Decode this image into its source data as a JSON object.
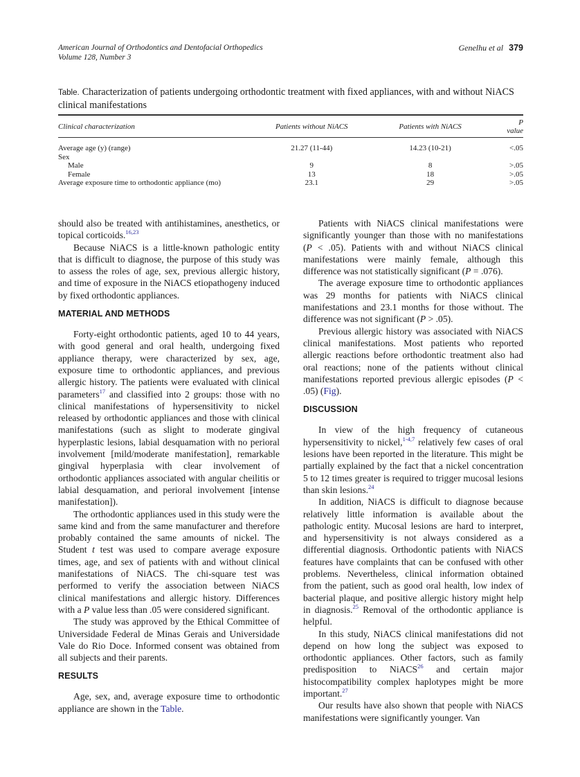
{
  "running_header": {
    "journal": "American Journal of Orthodontics and Dentofacial Orthopedics",
    "volume": "Volume 128, Number 3",
    "authors": "Genelhu et al",
    "page_number": "379"
  },
  "table": {
    "label": "Table.",
    "caption": "Characterization of patients undergoing orthodontic treatment with fixed appliances, with and without NiACS clinical manifestations",
    "headers": [
      "Clinical characterization",
      "Patients without NiACS",
      "Patients with NiACS",
      "P value"
    ],
    "rows": [
      {
        "label": "Average age (y) (range)",
        "without": "21.27 (11-44)",
        "with": "14.23 (10-21)",
        "p": "<.05"
      },
      {
        "label": "Sex",
        "without": "",
        "with": "",
        "p": ""
      },
      {
        "label": "Male",
        "without": "9",
        "with": "8",
        "p": ">.05"
      },
      {
        "label": "Female",
        "without": "13",
        "with": "18",
        "p": ">.05"
      },
      {
        "label": "Average exposure time to orthodontic appliance (mo)",
        "without": "23.1",
        "with": "29",
        "p": ">.05"
      }
    ]
  },
  "body": {
    "left": [
      {
        "type": "p",
        "indent": false,
        "segments": [
          {
            "t": "should also be treated with antihistamines, anesthetics, or topical corticoids."
          },
          {
            "sup": "16,23"
          }
        ]
      },
      {
        "type": "p",
        "segments": [
          {
            "t": "Because NiACS is a little-known pathologic entity that is difficult to diagnose, the purpose of this study was to assess the roles of age, sex, previous allergic history, and time of exposure in the NiACS etiopathogeny induced by fixed orthodontic appliances."
          }
        ]
      },
      {
        "type": "h",
        "text": "MATERIAL AND METHODS"
      },
      {
        "type": "p",
        "segments": [
          {
            "t": "Forty-eight orthodontic patients, aged 10 to 44 years, with good general and oral health, undergoing fixed appliance therapy, were characterized by sex, age, exposure time to orthodontic appliances, and previous allergic history. The patients were evaluated with clinical parameters"
          },
          {
            "sup": "17"
          },
          {
            "t": " and classified into 2 groups: those with no clinical manifestations of hypersensitivity to nickel released by orthodontic appliances and those with clinical manifestations (such as slight to moderate gingival hyperplastic lesions, labial desquamation with no perioral involvement [mild/moderate manifestation], remarkable gingival hyperplasia with clear involvement of orthodontic appliances associated with angular cheilitis or labial desquamation, and perioral involvement [intense manifestation])."
          }
        ]
      },
      {
        "type": "p",
        "segments": [
          {
            "t": "The orthodontic appliances used in this study were the same kind and from the same manufacturer and therefore probably contained the same amounts of nickel. The Student "
          },
          {
            "i": "t"
          },
          {
            "t": " test was used to compare average exposure times, age, and sex of patients with and without clinical manifestations of NiACS. The chi-square test was performed to verify the association between NiACS clinical manifestations and allergic history. Differences with a "
          },
          {
            "i": "P"
          },
          {
            "t": " value less than .05 were considered significant."
          }
        ]
      },
      {
        "type": "p",
        "segments": [
          {
            "t": "The study was approved by the Ethical Committee of Universidade Federal de Minas Gerais and Universidade Vale do Rio Doce. Informed consent was obtained from all subjects and their parents."
          }
        ]
      },
      {
        "type": "h",
        "text": "RESULTS"
      },
      {
        "type": "p",
        "segments": [
          {
            "t": "Age, sex, and, average exposure time to orthodontic appliance are shown in the "
          },
          {
            "link": "Table"
          },
          {
            "t": "."
          }
        ]
      }
    ],
    "right": [
      {
        "type": "p",
        "segments": [
          {
            "t": "Patients with NiACS clinical manifestations were significantly younger than those with no manifestations ("
          },
          {
            "i": "P"
          },
          {
            "t": " < .05). Patients with and without NiACS clinical manifestations were mainly female, although this difference was not statistically significant ("
          },
          {
            "i": "P"
          },
          {
            "t": " = .076)."
          }
        ]
      },
      {
        "type": "p",
        "segments": [
          {
            "t": "The average exposure time to orthodontic appliances was 29 months for patients with NiACS clinical manifestations and 23.1 months for those without. The difference was not significant ("
          },
          {
            "i": "P"
          },
          {
            "t": " > .05)."
          }
        ]
      },
      {
        "type": "p",
        "segments": [
          {
            "t": "Previous allergic history was associated with NiACS clinical manifestations. Most patients who reported allergic reactions before orthodontic treatment also had oral reactions; none of the patients without clinical manifestations reported previous allergic episodes ("
          },
          {
            "i": "P"
          },
          {
            "t": " < .05) ("
          },
          {
            "link": "Fig"
          },
          {
            "t": ")."
          }
        ]
      },
      {
        "type": "h",
        "text": "DISCUSSION"
      },
      {
        "type": "p",
        "segments": [
          {
            "t": "In view of the high frequency of cutaneous hypersensitivity to nickel,"
          },
          {
            "sup": "1-4,7"
          },
          {
            "t": " relatively few cases of oral lesions have been reported in the literature. This might be partially explained by the fact that a nickel concentration 5 to 12 times greater is required to trigger mucosal lesions than skin lesions."
          },
          {
            "sup": "24"
          }
        ]
      },
      {
        "type": "p",
        "segments": [
          {
            "t": "In addition, NiACS is difficult to diagnose because relatively little information is available about the pathologic entity. Mucosal lesions are hard to interpret, and hypersensitivity is not always considered as a differential diagnosis. Orthodontic patients with NiACS features have complaints that can be confused with other problems. Nevertheless, clinical information obtained from the patient, such as good oral health, low index of bacterial plaque, and positive allergic history might help in diagnosis."
          },
          {
            "sup": "25"
          },
          {
            "t": " Removal of the orthodontic appliance is helpful."
          }
        ]
      },
      {
        "type": "p",
        "segments": [
          {
            "t": "In this study, NiACS clinical manifestations did not depend on how long the subject was exposed to orthodontic appliances. Other factors, such as family predisposition to NiACS"
          },
          {
            "sup": "26"
          },
          {
            "t": " and certain major histocompatibility complex haplotypes might be more important."
          },
          {
            "sup": "27"
          }
        ]
      },
      {
        "type": "p",
        "segments": [
          {
            "t": "Our results have also shown that people with NiACS manifestations were significantly younger. Van"
          }
        ]
      }
    ]
  }
}
